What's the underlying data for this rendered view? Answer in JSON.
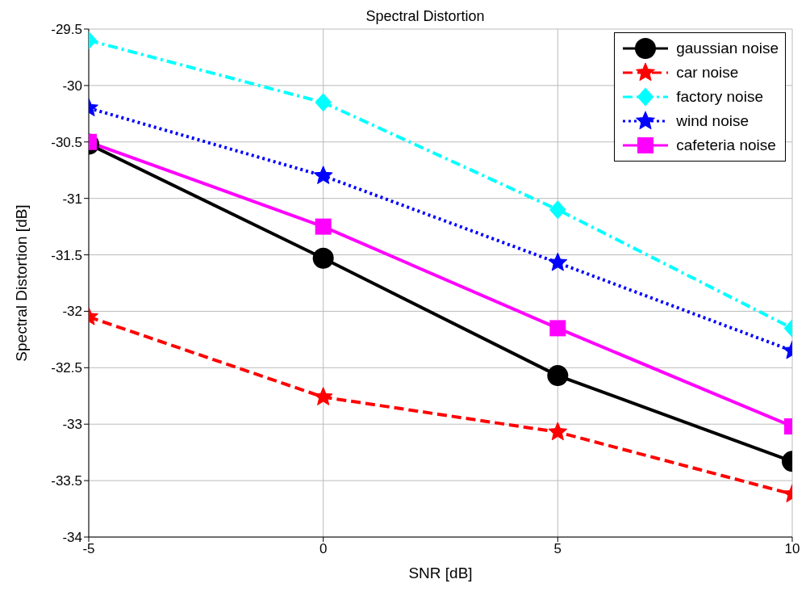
{
  "chart_data": {
    "type": "line",
    "title": "Spectral Distortion",
    "xlabel": "SNR [dB]",
    "ylabel": "Spectral Distortion [dB]",
    "x": [
      -5,
      0,
      5,
      10
    ],
    "series": [
      {
        "name": "gaussian noise",
        "color": "#000000",
        "values": [
          -30.52,
          -31.53,
          -32.57,
          -33.33
        ],
        "marker": "circle",
        "line_style": "solid"
      },
      {
        "name": "car noise",
        "color": "#ff0000",
        "values": [
          -32.05,
          -32.76,
          -33.07,
          -33.62
        ],
        "marker": "star",
        "line_style": "dashed"
      },
      {
        "name": "factory noise",
        "color": "#00ffff",
        "values": [
          -29.6,
          -30.15,
          -31.1,
          -32.15
        ],
        "marker": "diamond",
        "line_style": "dashdot"
      },
      {
        "name": "wind noise",
        "color": "#0000ff",
        "values": [
          -30.2,
          -30.8,
          -31.57,
          -32.35
        ],
        "marker": "star",
        "line_style": "dotted"
      },
      {
        "name": "cafeteria noise",
        "color": "#ff00ff",
        "values": [
          -30.5,
          -31.25,
          -32.15,
          -33.02
        ],
        "marker": "square",
        "line_style": "solid"
      }
    ],
    "xlim": [
      -5,
      10
    ],
    "xticks": [
      -5,
      0,
      5,
      10
    ],
    "ylim": [
      -34,
      -29.5
    ],
    "yticks": [
      -34,
      -33.5,
      -33,
      -32.5,
      -32,
      -31.5,
      -31,
      -30.5,
      -30,
      -29.5
    ],
    "grid": true,
    "legend": "top right"
  }
}
